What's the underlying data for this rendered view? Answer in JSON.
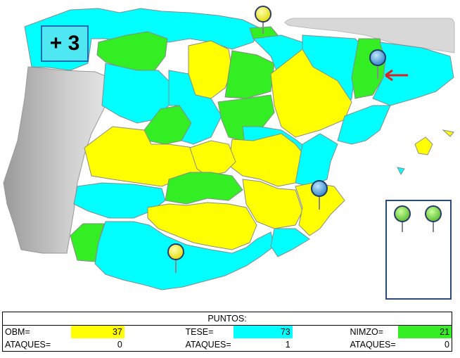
{
  "colors": {
    "obm": "#ffff00",
    "tese": "#00ffff",
    "nimzo": "#33ee22",
    "sea": "#ffffff",
    "foreign": "#b0b0b0",
    "border": "#8a8a8a"
  },
  "counter": {
    "label": "+ 3"
  },
  "scoreboard": {
    "title": "PUNTOS:",
    "players": [
      {
        "name": "OBM=",
        "points": "37",
        "attacks_label": "ATAQUES=",
        "attacks": "0",
        "color": "yellow"
      },
      {
        "name": "TESE=",
        "points": "73",
        "attacks_label": "ATAQUES=",
        "attacks": "1",
        "color": "cyan"
      },
      {
        "name": "NIMZO=",
        "points": "21",
        "attacks_label": "ATAQUES=",
        "attacks": "0",
        "color": "green"
      }
    ]
  },
  "map": {
    "pins": [
      {
        "name": "yellow-pin",
        "color": "yellow"
      },
      {
        "name": "blue-pin",
        "color": "blue",
        "highlighted": true
      },
      {
        "name": "blue-pin",
        "color": "blue"
      },
      {
        "name": "yellow-pin",
        "color": "yellow"
      }
    ],
    "reserve_pins": [
      {
        "name": "green-pin",
        "color": "green"
      },
      {
        "name": "green-pin",
        "color": "green"
      }
    ],
    "arrow_icon": "red-arrow-icon"
  }
}
